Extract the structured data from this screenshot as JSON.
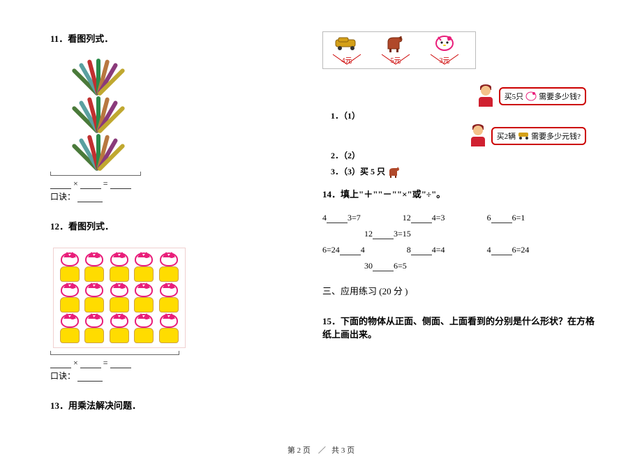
{
  "q11": {
    "title": "11．看图列式．",
    "stick_rows": 3,
    "sticks_per_row": 7,
    "stick_colors": [
      "#4a7a3a",
      "#5aa0a0",
      "#c03030",
      "#2a8a4a",
      "#b87840",
      "#8a3a7a",
      "#c0a830"
    ],
    "formula_symbol": "×",
    "formula_eq": "=",
    "koujue_label": "口诀："
  },
  "q12": {
    "title": "12．看图列式．",
    "kitty_rows": 3,
    "kitty_cols": 5,
    "formula_symbol": "×",
    "formula_eq": "=",
    "koujue_label": "口诀："
  },
  "q13": {
    "title": "13．用乘法解决问题．",
    "items": [
      {
        "label": "4元",
        "color": "#c00"
      },
      {
        "label": "5元",
        "color": "#c00"
      },
      {
        "label": "3元",
        "color": "#c00"
      }
    ],
    "bubble1_prefix": "买5只",
    "bubble1_text": "需要多少钱?",
    "bubble2_prefix": "买2辆",
    "bubble2_text": "需要多少元钱?",
    "sub1": "1．（1）",
    "sub2": "2．（2）",
    "sub3_prefix": "3．（3）买 5 只"
  },
  "q14": {
    "title": "14．填上\"＋\"\"－\"\"×\"或\"÷\"。",
    "row1": [
      "4",
      "3=7",
      "12",
      "4=3",
      "6",
      "6=1"
    ],
    "row1b": [
      "12",
      "3=15"
    ],
    "row2": [
      "6=24",
      "4",
      "8",
      "4=4",
      "4",
      "6=24"
    ],
    "row2b": [
      "30",
      "6=5"
    ]
  },
  "section3": {
    "title": "三、应用练习 (20 分 )"
  },
  "q15": {
    "title": "15．下面的物体从正面、侧面、上面看到的分别是什么形状？在方格纸上画出来。"
  },
  "footer": {
    "page_label": "第 2 页",
    "sep": "／",
    "total_label": "共 3 页"
  }
}
